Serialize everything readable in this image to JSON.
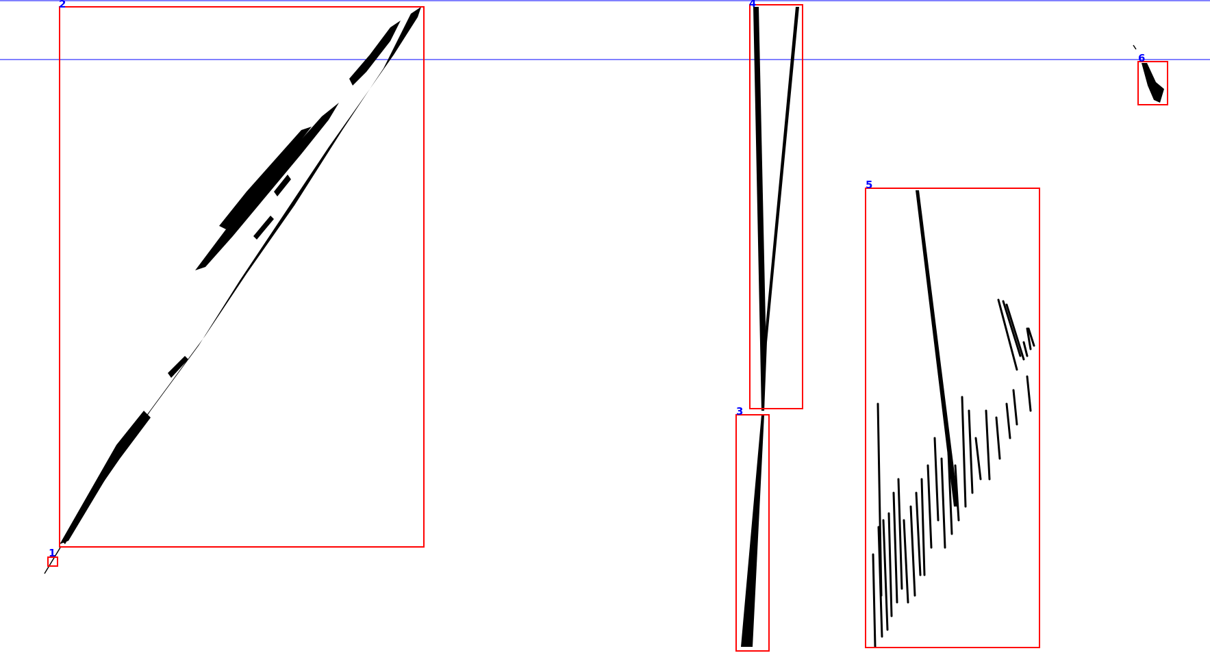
{
  "colors": {
    "background": "#ffffff",
    "box": "#ff0000",
    "label": "#0000ff",
    "guide": "#0000ff",
    "shape": "#000000"
  },
  "boxes": [
    {
      "label": "1"
    },
    {
      "label": "2"
    },
    {
      "label": "3"
    },
    {
      "label": "4"
    },
    {
      "label": "5"
    },
    {
      "label": "6"
    }
  ]
}
